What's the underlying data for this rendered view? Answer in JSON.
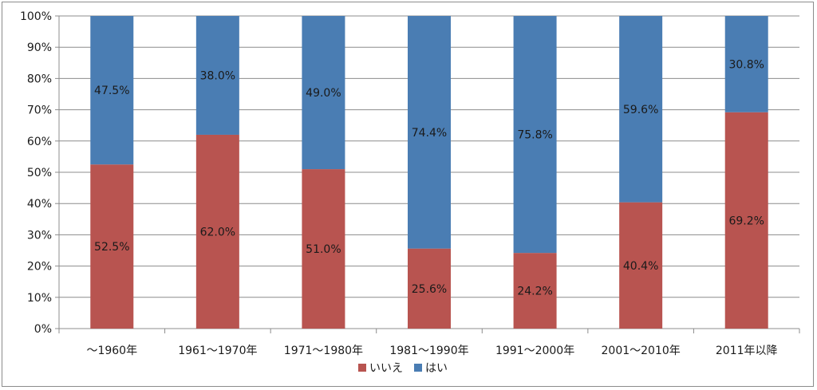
{
  "chart_data": {
    "type": "bar",
    "stacked": true,
    "percent": true,
    "categories": [
      "～1960年",
      "1961～1970年",
      "1971～1980年",
      "1981～1990年",
      "1991～2000年",
      "2001～2010年",
      "2011年以降"
    ],
    "series": [
      {
        "name": "いいえ",
        "color": "#b85450",
        "values": [
          52.5,
          62.0,
          51.0,
          25.6,
          24.2,
          40.4,
          69.2
        ],
        "labels": [
          "52.5%",
          "62.0%",
          "51.0%",
          "25.6%",
          "24.2%",
          "40.4%",
          "69.2%"
        ]
      },
      {
        "name": "はい",
        "color": "#4a7db3",
        "values": [
          47.5,
          38.0,
          49.0,
          74.4,
          75.8,
          59.6,
          30.8
        ],
        "labels": [
          "47.5%",
          "38.0%",
          "49.0%",
          "74.4%",
          "75.8%",
          "59.6%",
          "30.8%"
        ]
      }
    ],
    "y_ticks": [
      "0%",
      "10%",
      "20%",
      "30%",
      "40%",
      "50%",
      "60%",
      "70%",
      "80%",
      "90%",
      "100%"
    ],
    "ylim": [
      0,
      100
    ],
    "grid": true,
    "legend_position": "bottom",
    "title": "",
    "xlabel": "",
    "ylabel": ""
  }
}
